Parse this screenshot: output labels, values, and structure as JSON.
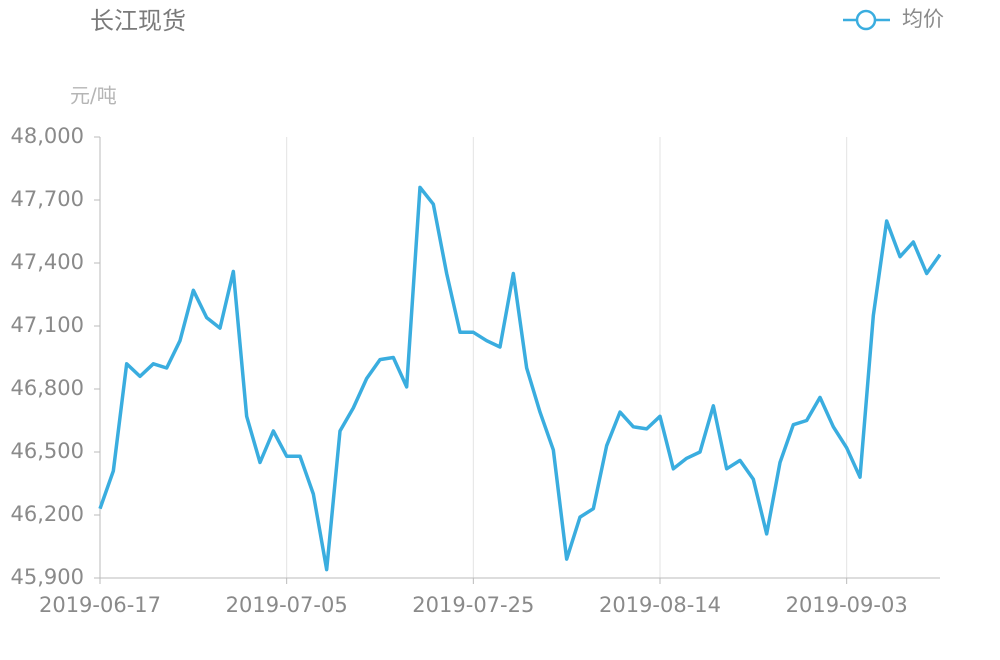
{
  "chart_data": {
    "type": "line",
    "title": "长江现货",
    "y_label": "元/吨",
    "categories": [
      "2019-06-17",
      null,
      null,
      null,
      null,
      null,
      null,
      null,
      null,
      null,
      null,
      null,
      null,
      null,
      "2019-07-05",
      null,
      null,
      null,
      null,
      null,
      null,
      null,
      null,
      null,
      null,
      null,
      null,
      null,
      "2019-07-25",
      null,
      null,
      null,
      null,
      null,
      null,
      null,
      null,
      null,
      null,
      null,
      null,
      null,
      "2019-08-14",
      null,
      null,
      null,
      null,
      null,
      null,
      null,
      null,
      null,
      null,
      null,
      null,
      null,
      "2019-09-03",
      null,
      null,
      null,
      null,
      null,
      null,
      null
    ],
    "series": [
      {
        "name": "均价",
        "color": "#3aaddf",
        "values": [
          46230,
          46410,
          46920,
          46860,
          46920,
          46900,
          47030,
          47270,
          47140,
          47090,
          47360,
          46670,
          46450,
          46600,
          46480,
          46480,
          46300,
          45940,
          46600,
          46710,
          46850,
          46940,
          46950,
          46810,
          47760,
          47680,
          47350,
          47070,
          47070,
          47030,
          47000,
          47350,
          46900,
          46690,
          46510,
          45990,
          46190,
          46230,
          46530,
          46690,
          46620,
          46610,
          46670,
          46420,
          46470,
          46500,
          46720,
          46420,
          46460,
          46370,
          46110,
          46450,
          46630,
          46650,
          46760,
          46620,
          46520,
          46380,
          47150,
          47600,
          47430,
          47500,
          47350,
          47440
        ]
      }
    ],
    "ylim": [
      45900,
      48000
    ],
    "yticks": [
      {
        "value": 45900,
        "label": "45,900"
      },
      {
        "value": 46200,
        "label": "46,200"
      },
      {
        "value": 46500,
        "label": "46,500"
      },
      {
        "value": 46800,
        "label": "46,800"
      },
      {
        "value": 47100,
        "label": "47,100"
      },
      {
        "value": 47400,
        "label": "47,400"
      },
      {
        "value": 47700,
        "label": "47,700"
      },
      {
        "value": 48000,
        "label": "48,000"
      }
    ],
    "grid": true,
    "legend": "top-right"
  }
}
